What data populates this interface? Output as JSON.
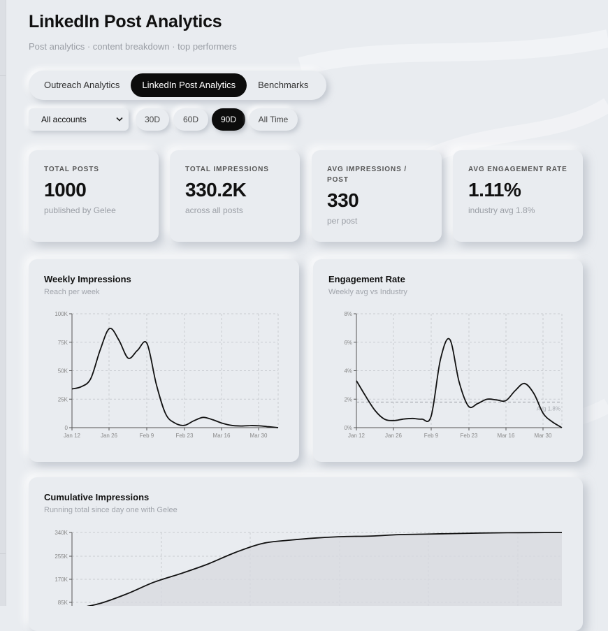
{
  "page": {
    "title": "LinkedIn Post Analytics",
    "subtitle": "Post analytics · content breakdown · top performers"
  },
  "tabs": [
    {
      "label": "Outreach Analytics",
      "active": false
    },
    {
      "label": "LinkedIn Post Analytics",
      "active": true
    },
    {
      "label": "Benchmarks",
      "active": false
    }
  ],
  "filters": {
    "account_select": {
      "value": "All accounts",
      "options": [
        "All accounts"
      ]
    },
    "ranges": [
      {
        "label": "30D",
        "active": false
      },
      {
        "label": "60D",
        "active": false
      },
      {
        "label": "90D",
        "active": true
      },
      {
        "label": "All Time",
        "active": false
      }
    ]
  },
  "kpis": [
    {
      "label": "TOTAL POSTS",
      "value": "1000",
      "sub": "published by Gelee"
    },
    {
      "label": "TOTAL IMPRESSIONS",
      "value": "330.2K",
      "sub": "across all posts"
    },
    {
      "label": "AVG IMPRESSIONS / POST",
      "value": "330",
      "sub": "per post"
    },
    {
      "label": "AVG ENGAGEMENT RATE",
      "value": "1.11%",
      "sub": "industry avg 1.8%"
    }
  ],
  "charts": {
    "weekly": {
      "title": "Weekly Impressions",
      "subtitle": "Reach per week"
    },
    "engagement": {
      "title": "Engagement Rate",
      "subtitle": "Weekly avg vs Industry"
    },
    "cumulative": {
      "title": "Cumulative Impressions",
      "subtitle": "Running total since day one with Gelee"
    }
  },
  "colors": {
    "line": "#111111",
    "grid": "#c9ccd1",
    "accent": "#0c0c0c",
    "background": "#e9ecf0"
  },
  "chart_data": [
    {
      "type": "line",
      "title": "Weekly Impressions",
      "subtitle": "Reach per week",
      "x_ticks": [
        "Jan 12",
        "Jan 26",
        "Feb 9",
        "Feb 23",
        "Mar 16",
        "Mar 30"
      ],
      "y_ticks": [
        "0",
        "25K",
        "50K",
        "75K",
        "100K"
      ],
      "ylim": [
        0,
        100000
      ],
      "grid": true,
      "series": [
        {
          "values": [
            34000,
            36000,
            43000,
            68000,
            87000,
            77000,
            61000,
            68000,
            74000,
            38000,
            12000,
            4000,
            2000,
            6000,
            9000,
            7000,
            4000,
            2000,
            1500,
            1800,
            1600,
            800,
            0
          ]
        }
      ]
    },
    {
      "type": "line",
      "title": "Engagement Rate",
      "subtitle": "Weekly avg vs Industry",
      "x_ticks": [
        "Jan 12",
        "Jan 26",
        "Feb 9",
        "Feb 23",
        "Mar 16",
        "Mar 30"
      ],
      "y_ticks": [
        "0%",
        "2%",
        "4%",
        "6%",
        "8%"
      ],
      "ylim": [
        0,
        8
      ],
      "grid": true,
      "reference": {
        "label": "Avg 1.8%",
        "value": 1.8
      },
      "series": [
        {
          "values": [
            3.3,
            2.2,
            1.2,
            0.6,
            0.5,
            0.6,
            0.65,
            0.6,
            0.8,
            4.8,
            6.2,
            3.2,
            1.5,
            1.7,
            2.0,
            1.95,
            1.9,
            2.6,
            3.1,
            2.4,
            1.0,
            0.4,
            0
          ]
        }
      ]
    },
    {
      "type": "area",
      "title": "Cumulative Impressions",
      "subtitle": "Running total since day one with Gelee",
      "y_ticks": [
        "85K",
        "170K",
        "255K",
        "340K"
      ],
      "ylim": [
        70000,
        340000
      ],
      "grid": true,
      "series": [
        {
          "values": [
            60000,
            80000,
            115000,
            158000,
            190000,
            225000,
            267000,
            300000,
            312000,
            320000,
            325000,
            327000,
            332000,
            334000,
            336000,
            338000,
            339000,
            339500,
            340000
          ]
        }
      ]
    }
  ]
}
